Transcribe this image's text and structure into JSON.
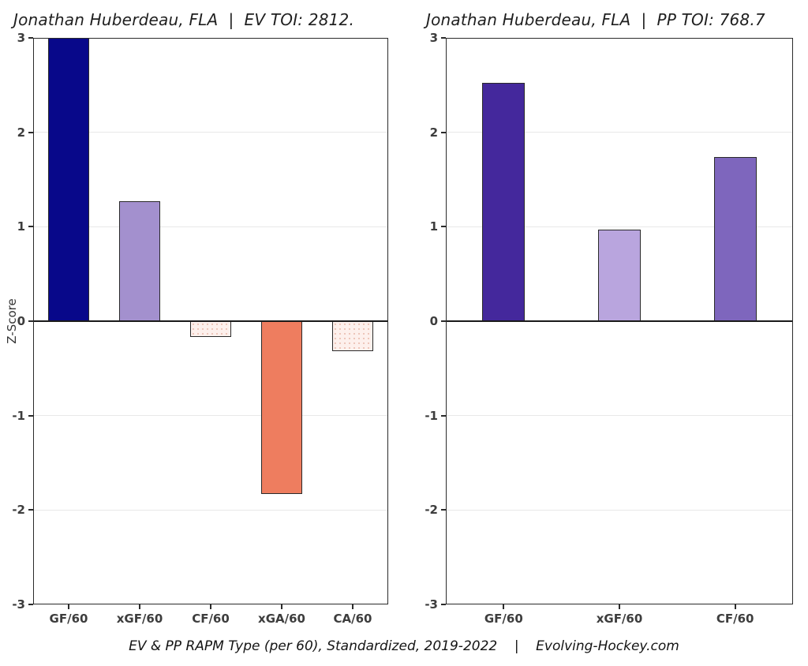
{
  "figure": {
    "background": "#ffffff",
    "caption": "EV & PP RAPM Type (per 60), Standardized, 2019-2022    |    Evolving-Hockey.com"
  },
  "chart_data": [
    {
      "type": "bar",
      "title": "Jonathan Huberdeau, FLA  |  EV TOI: 2812.",
      "ylabel": "Z-Score",
      "xlabel": "",
      "ylim": [
        -3,
        3
      ],
      "yticks": [
        3,
        2,
        1,
        0,
        -1,
        -2,
        -3
      ],
      "grid": true,
      "legend": "none",
      "categories": [
        "GF/60",
        "xGF/60",
        "CF/60",
        "xGA/60",
        "CA/60"
      ],
      "values": [
        3.0,
        1.27,
        -0.17,
        -1.83,
        -0.32
      ],
      "bar_colors": [
        "#08088a",
        "#a390ce",
        "#fdf0ec",
        "#ee7d5f",
        "#fdf0ec"
      ],
      "bar_styles": [
        "solid",
        "solid",
        "stipple",
        "solid",
        "stipple"
      ],
      "bar_outline": "#2a2a2a"
    },
    {
      "type": "bar",
      "title": "Jonathan Huberdeau, FLA  |  PP TOI: 768.7",
      "ylabel": "",
      "xlabel": "",
      "ylim": [
        -3,
        3
      ],
      "yticks": [
        3,
        2,
        1,
        0,
        -1,
        -2,
        -3
      ],
      "grid": true,
      "legend": "none",
      "categories": [
        "GF/60",
        "xGF/60",
        "CF/60"
      ],
      "values": [
        2.52,
        0.97,
        1.74
      ],
      "bar_colors": [
        "#44289c",
        "#b9a5de",
        "#7e66bd"
      ],
      "bar_styles": [
        "solid",
        "solid",
        "solid"
      ],
      "bar_outline": "#2a2a2a"
    }
  ],
  "colors": {
    "grid": "#e8e8e8",
    "axis": "#2b2b2b",
    "zero_line": "#1a1a1a",
    "title_text": "#1f1f1f",
    "tick_text": "#3d3d3d"
  }
}
